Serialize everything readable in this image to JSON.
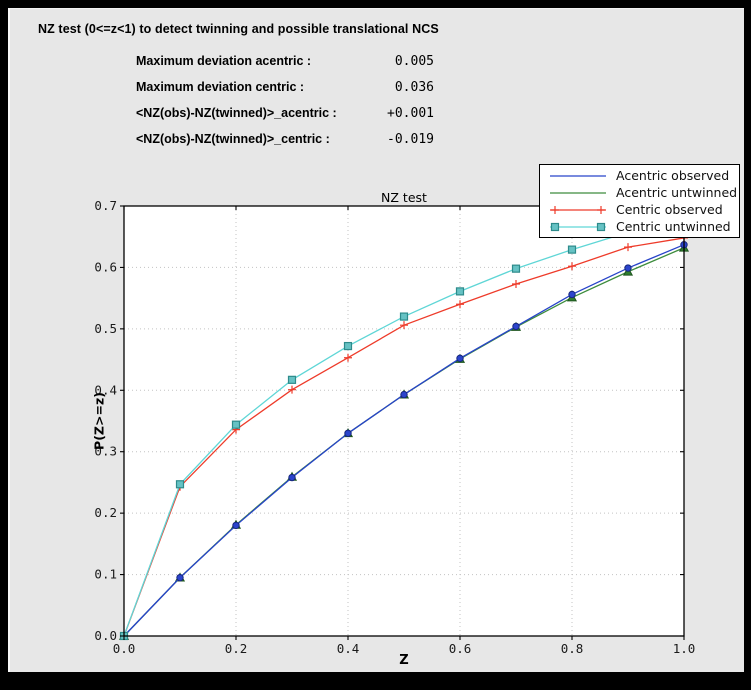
{
  "header": {
    "title": "NZ test (0<=z<1) to detect twinning and possible translational NCS"
  },
  "stats": {
    "rows": [
      {
        "label": "Maximum deviation acentric :",
        "value": "0.005"
      },
      {
        "label": "Maximum deviation centric :",
        "value": "0.036"
      },
      {
        "label": "<NZ(obs)-NZ(twinned)>_acentric :",
        "value": "+0.001"
      },
      {
        "label": "<NZ(obs)-NZ(twinned)>_centric :",
        "value": "-0.019"
      }
    ]
  },
  "colors": {
    "window_bg": "#e7e7e7",
    "plot_bg": "#ffffff",
    "frame": "#000000",
    "grid": "#c3c3c3",
    "tick_text": "#1a1a1a"
  },
  "chart_data": {
    "type": "line",
    "title": "NZ test",
    "xlabel": "Z",
    "ylabel": "P(Z>=z)",
    "xlim": [
      0.0,
      1.0
    ],
    "ylim": [
      0.0,
      0.7
    ],
    "grid": true,
    "legend_position": "upper right",
    "x_ticks": [
      "0.0",
      "0.2",
      "0.4",
      "0.6",
      "0.8",
      "1.0"
    ],
    "y_ticks": [
      "0.0",
      "0.1",
      "0.2",
      "0.3",
      "0.4",
      "0.5",
      "0.6",
      "0.7"
    ],
    "x": [
      0.0,
      0.1,
      0.2,
      0.3,
      0.4,
      0.5,
      0.6,
      0.7,
      0.8,
      0.9,
      1.0
    ],
    "series": [
      {
        "name": "Acentric observed",
        "color": "#2743c9",
        "marker": "circle",
        "marker_fill": "#2b44cc",
        "marker_edge": "#16277e",
        "legend_markers": false,
        "values": [
          0.0,
          0.095,
          0.18,
          0.258,
          0.33,
          0.393,
          0.452,
          0.504,
          0.556,
          0.599,
          0.637
        ]
      },
      {
        "name": "Acentric untwinned",
        "color": "#3d8c3d",
        "marker": "triangle",
        "marker_fill": "#2f7d2f",
        "marker_edge": "#1d551d",
        "legend_markers": false,
        "values": [
          0.0,
          0.095,
          0.181,
          0.259,
          0.33,
          0.393,
          0.451,
          0.503,
          0.551,
          0.593,
          0.632
        ]
      },
      {
        "name": "Centric observed",
        "color": "#ee3b2a",
        "marker": "plus",
        "marker_fill": "#ee3b2a",
        "marker_edge": "#ee3b2a",
        "legend_markers": true,
        "values": [
          0.0,
          0.243,
          0.336,
          0.401,
          0.453,
          0.506,
          0.54,
          0.573,
          0.602,
          0.633,
          0.648
        ]
      },
      {
        "name": "Centric untwinned",
        "color": "#5fd6d6",
        "marker": "square",
        "marker_fill": "#66c2c4",
        "marker_edge": "#2e8b8b",
        "legend_markers": true,
        "values": [
          0.0,
          0.247,
          0.344,
          0.417,
          0.472,
          0.52,
          0.561,
          0.598,
          0.629,
          0.657,
          0.683
        ]
      }
    ]
  }
}
